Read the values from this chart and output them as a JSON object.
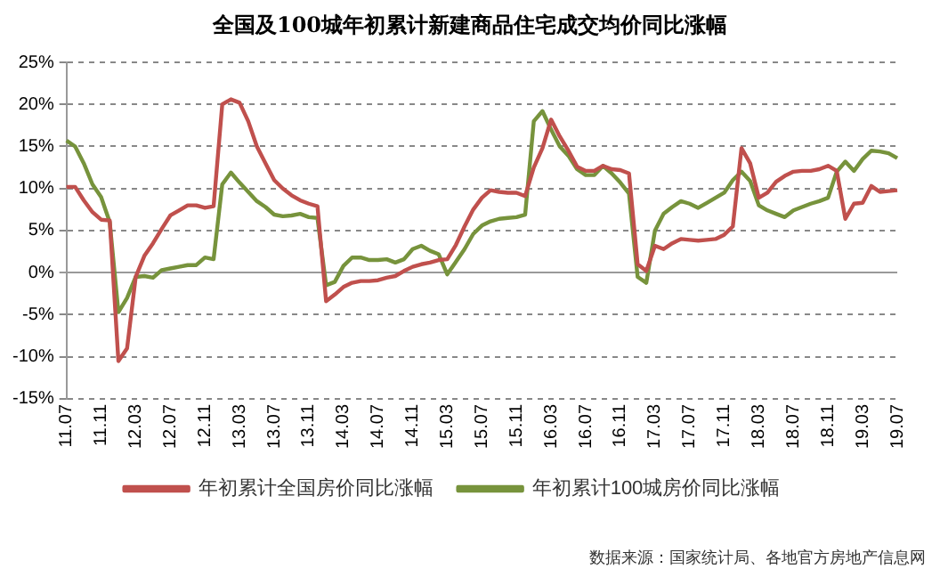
{
  "chart_data": {
    "type": "line",
    "title": "全国及100城年初累计新建商品住宅成交均价同比涨幅",
    "categories": [
      "11.07",
      null,
      null,
      null,
      "11.11",
      null,
      null,
      null,
      "12.03",
      null,
      null,
      null,
      "12.07",
      null,
      null,
      null,
      "12.11",
      null,
      null,
      null,
      "13.03",
      null,
      null,
      null,
      "13.07",
      null,
      null,
      null,
      "13.11",
      null,
      null,
      null,
      "14.03",
      null,
      null,
      null,
      "14.07",
      null,
      null,
      null,
      "14.11",
      null,
      null,
      null,
      "15.03",
      null,
      null,
      null,
      "15.07",
      null,
      null,
      null,
      "15.11",
      null,
      null,
      null,
      "16.03",
      null,
      null,
      null,
      "16.07",
      null,
      null,
      null,
      "16.11",
      null,
      null,
      null,
      "17.03",
      null,
      null,
      null,
      "17.07",
      null,
      null,
      null,
      "17.11",
      null,
      null,
      null,
      "18.03",
      null,
      null,
      null,
      "18.07",
      null,
      null,
      null,
      "18.11",
      null,
      null,
      null,
      "19.03",
      null,
      null,
      null,
      "19.07"
    ],
    "series": [
      {
        "name": "年初累计全国房价同比涨幅",
        "color": "#c0504d",
        "values": [
          10.2,
          10.2,
          8.6,
          7.2,
          6.3,
          6.2,
          -10.5,
          -9.0,
          -0.5,
          2.0,
          3.5,
          5.2,
          6.8,
          7.4,
          8.0,
          8.0,
          7.7,
          7.9,
          20.0,
          20.6,
          20.2,
          18.0,
          15.0,
          13.0,
          11.0,
          10.0,
          9.2,
          8.6,
          8.2,
          7.9,
          -3.4,
          -2.6,
          -1.7,
          -1.2,
          -1.0,
          -1.0,
          -0.9,
          -0.6,
          -0.4,
          0.2,
          0.7,
          1.0,
          1.2,
          1.5,
          1.6,
          3.3,
          5.5,
          7.5,
          8.9,
          9.8,
          9.6,
          9.5,
          9.5,
          9.1,
          12.5,
          14.8,
          18.2,
          16.2,
          14.5,
          12.6,
          12.1,
          12.1,
          12.7,
          12.3,
          12.2,
          11.8,
          1.0,
          0.2,
          3.2,
          2.8,
          3.5,
          4.0,
          3.9,
          3.8,
          3.9,
          4.0,
          4.5,
          5.5,
          14.8,
          13.0,
          8.9,
          9.5,
          10.8,
          11.5,
          12.0,
          12.1,
          12.1,
          12.3,
          12.7,
          12.1,
          6.4,
          8.2,
          8.3,
          10.3,
          9.6,
          9.7,
          9.8
        ]
      },
      {
        "name": "年初累计100城房价同比涨幅",
        "color": "#77933c",
        "values": [
          15.7,
          15.0,
          13.0,
          10.5,
          9.0,
          6.0,
          -4.7,
          -3.0,
          -0.5,
          -0.4,
          -0.6,
          0.3,
          0.5,
          0.7,
          0.9,
          0.9,
          1.8,
          1.6,
          10.5,
          11.9,
          10.7,
          9.6,
          8.5,
          7.8,
          6.9,
          6.7,
          6.8,
          7.0,
          6.6,
          6.5,
          -1.5,
          -1.1,
          0.8,
          1.8,
          1.8,
          1.5,
          1.5,
          1.6,
          1.2,
          1.6,
          2.8,
          3.2,
          2.6,
          2.2,
          -0.2,
          1.3,
          2.8,
          4.6,
          5.6,
          6.1,
          6.4,
          6.5,
          6.6,
          6.9,
          18.0,
          19.2,
          17.0,
          15.0,
          13.9,
          12.3,
          11.6,
          11.6,
          12.7,
          11.8,
          10.7,
          9.4,
          -0.5,
          -1.2,
          5.0,
          7.0,
          7.8,
          8.5,
          8.2,
          7.7,
          8.3,
          8.9,
          9.5,
          11.0,
          12.0,
          10.9,
          8.0,
          7.4,
          7.0,
          6.6,
          7.4,
          7.8,
          8.2,
          8.5,
          8.9,
          12.0,
          13.2,
          12.1,
          13.5,
          14.5,
          14.4,
          14.2,
          13.6
        ]
      }
    ],
    "ylim": [
      -15,
      25
    ],
    "yticks": [
      {
        "value": -15,
        "label": "-15%"
      },
      {
        "value": -10,
        "label": "-10%"
      },
      {
        "value": -5,
        "label": "-5%"
      },
      {
        "value": 0,
        "label": "0%"
      },
      {
        "value": 5,
        "label": "5%"
      },
      {
        "value": 10,
        "label": "10%"
      },
      {
        "value": 15,
        "label": "15%"
      },
      {
        "value": 20,
        "label": "20%"
      },
      {
        "value": 25,
        "label": "25%"
      }
    ],
    "grid": "y",
    "legend": "bottom",
    "marker": "none",
    "line_style": "solid",
    "annotations": [
      "数据来源：国家统计局、各地官方房地产信息网"
    ]
  }
}
